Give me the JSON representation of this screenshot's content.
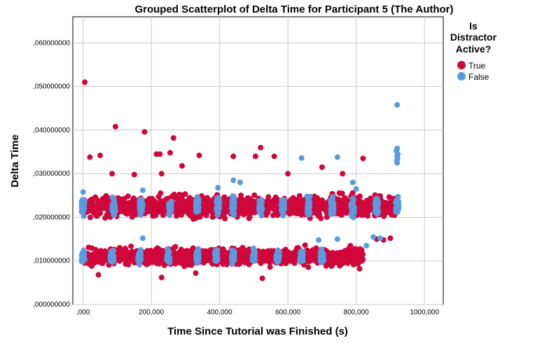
{
  "chart_data": {
    "type": "scatter",
    "title": "Grouped Scatterplot of Delta Time for Participant 5 (The Author)",
    "xlabel": "Time Since Tutorial was Finished (s)",
    "ylabel": "Delta Time",
    "xlim": [
      -30000,
      1055000
    ],
    "ylim": [
      0,
      0.066
    ],
    "x_ticks": [
      0,
      200000,
      400000,
      600000,
      800000,
      1000000
    ],
    "x_tick_labels": [
      ",000",
      "200,000",
      "400,000",
      "600,000",
      "800,000",
      "1000,000"
    ],
    "y_ticks": [
      0,
      0.01,
      0.02,
      0.03,
      0.04,
      0.05,
      0.06
    ],
    "y_tick_labels": [
      ",000000000",
      ",010000000",
      ",020000000",
      ",030000000",
      ",040000000",
      ",050000000",
      ",060000000"
    ],
    "grid": true,
    "legend": {
      "title": [
        "Is",
        "Distractor",
        "Active?"
      ],
      "placement": "right"
    },
    "series": [
      {
        "name": "True",
        "color": "#D0073A",
        "x_range": [
          5000,
          920000
        ],
        "bands": [
          {
            "y_center": 0.0225,
            "spread": 0.0033
          },
          {
            "y_center": 0.011,
            "spread": 0.0028
          }
        ],
        "bands_end_x": [
          920000,
          820000
        ],
        "outliers": [
          {
            "x": 5000,
            "y": 0.051
          },
          {
            "x": 95000,
            "y": 0.0408
          },
          {
            "x": 180000,
            "y": 0.0396
          },
          {
            "x": 265000,
            "y": 0.0382
          },
          {
            "x": 215000,
            "y": 0.0345
          },
          {
            "x": 225000,
            "y": 0.0345
          },
          {
            "x": 255000,
            "y": 0.0348
          },
          {
            "x": 20000,
            "y": 0.0338
          },
          {
            "x": 50000,
            "y": 0.0342
          },
          {
            "x": 340000,
            "y": 0.0342
          },
          {
            "x": 520000,
            "y": 0.036
          },
          {
            "x": 505000,
            "y": 0.034
          },
          {
            "x": 440000,
            "y": 0.034
          },
          {
            "x": 560000,
            "y": 0.034
          },
          {
            "x": 85000,
            "y": 0.03
          },
          {
            "x": 230000,
            "y": 0.03
          },
          {
            "x": 600000,
            "y": 0.03
          },
          {
            "x": 700000,
            "y": 0.0315
          },
          {
            "x": 820000,
            "y": 0.0335
          },
          {
            "x": 290000,
            "y": 0.0318
          },
          {
            "x": 150000,
            "y": 0.0298
          },
          {
            "x": 760000,
            "y": 0.03
          },
          {
            "x": 525000,
            "y": 0.006
          },
          {
            "x": 230000,
            "y": 0.0062
          },
          {
            "x": 45000,
            "y": 0.0068
          },
          {
            "x": 810000,
            "y": 0.0082
          },
          {
            "x": 330000,
            "y": 0.0072
          },
          {
            "x": 880000,
            "y": 0.0148
          },
          {
            "x": 900000,
            "y": 0.0152
          },
          {
            "x": 860000,
            "y": 0.015
          }
        ]
      },
      {
        "name": "False",
        "color": "#5A9BE0",
        "clusters_x": [
          0,
          90000,
          170000,
          255000,
          335000,
          395000,
          440000,
          520000,
          585000,
          660000,
          730000,
          790000,
          860000,
          920000
        ],
        "lower_clusters_x": [
          0,
          85000,
          165000,
          250000,
          335000,
          390000,
          440000,
          500000,
          570000,
          640000,
          700000
        ],
        "upper_band": {
          "y_center": 0.0225,
          "spread": 0.0028
        },
        "lower_band": {
          "y_center": 0.011,
          "spread": 0.0022
        },
        "outliers": [
          {
            "x": 920000,
            "y": 0.0458
          },
          {
            "x": 920000,
            "y": 0.0358
          },
          {
            "x": 918000,
            "y": 0.0352
          },
          {
            "x": 922000,
            "y": 0.0345
          },
          {
            "x": 920000,
            "y": 0.034
          },
          {
            "x": 921000,
            "y": 0.0335
          },
          {
            "x": 919000,
            "y": 0.033
          },
          {
            "x": 920000,
            "y": 0.0325
          },
          {
            "x": 640000,
            "y": 0.0336
          },
          {
            "x": 745000,
            "y": 0.0338
          },
          {
            "x": 440000,
            "y": 0.0285
          },
          {
            "x": 460000,
            "y": 0.028
          },
          {
            "x": 790000,
            "y": 0.028
          },
          {
            "x": 800000,
            "y": 0.0265
          },
          {
            "x": 175000,
            "y": 0.0262
          },
          {
            "x": 0,
            "y": 0.0258
          },
          {
            "x": 395000,
            "y": 0.0268
          },
          {
            "x": 850000,
            "y": 0.0155
          },
          {
            "x": 830000,
            "y": 0.0135
          },
          {
            "x": 870000,
            "y": 0.0152
          },
          {
            "x": 175000,
            "y": 0.0152
          },
          {
            "x": 745000,
            "y": 0.015
          },
          {
            "x": 690000,
            "y": 0.0148
          }
        ]
      }
    ]
  }
}
